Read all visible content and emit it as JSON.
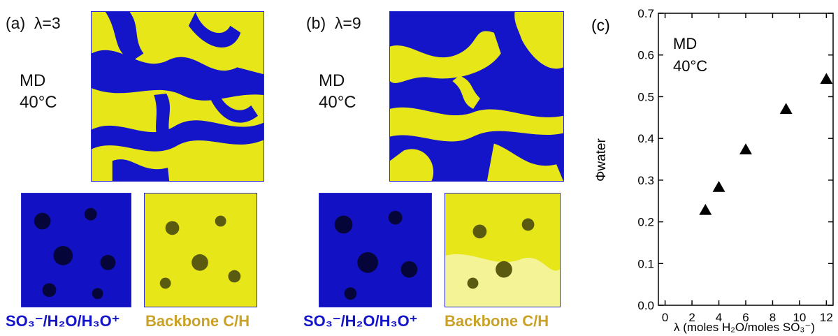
{
  "panel_a": {
    "label": "(a)",
    "lambda_label": "λ=3",
    "md_line1": "MD",
    "md_line2": "40°C",
    "caption_ionic": "SO₃⁻/H₂O/H₃O⁺",
    "caption_backbone": "Backbone C/H"
  },
  "panel_b": {
    "label": "(b)",
    "lambda_label": "λ=9",
    "md_line1": "MD",
    "md_line2": "40°C",
    "caption_ionic": "SO₃⁻/H₂O/H₃O⁺",
    "caption_backbone": "Backbone C/H"
  },
  "colors": {
    "ionic_blue": "#1414c8",
    "backbone_yellow": "#e6e619",
    "caption_gold": "#c9a227",
    "box_border": "#2a2ad0"
  },
  "chart_data": {
    "type": "scatter",
    "panel_label": "(c)",
    "annotation_line1": "MD",
    "annotation_line2": "40°C",
    "xlabel": "λ (moles H₂O/moles SO₃⁻)",
    "ylabel": "Φwater",
    "xlim": [
      -0.5,
      12.5
    ],
    "ylim": [
      0.0,
      0.7
    ],
    "xticks": [
      "0",
      "2",
      "4",
      "6",
      "8",
      "10",
      "12"
    ],
    "yticks": [
      "0.0",
      "0.1",
      "0.2",
      "0.3",
      "0.4",
      "0.5",
      "0.6",
      "0.7"
    ],
    "marker": "triangle-up",
    "marker_color": "#000000",
    "series": [
      {
        "x": [
          3,
          4,
          6,
          9,
          12
        ],
        "y": [
          0.228,
          0.283,
          0.373,
          0.47,
          0.542
        ]
      }
    ]
  }
}
